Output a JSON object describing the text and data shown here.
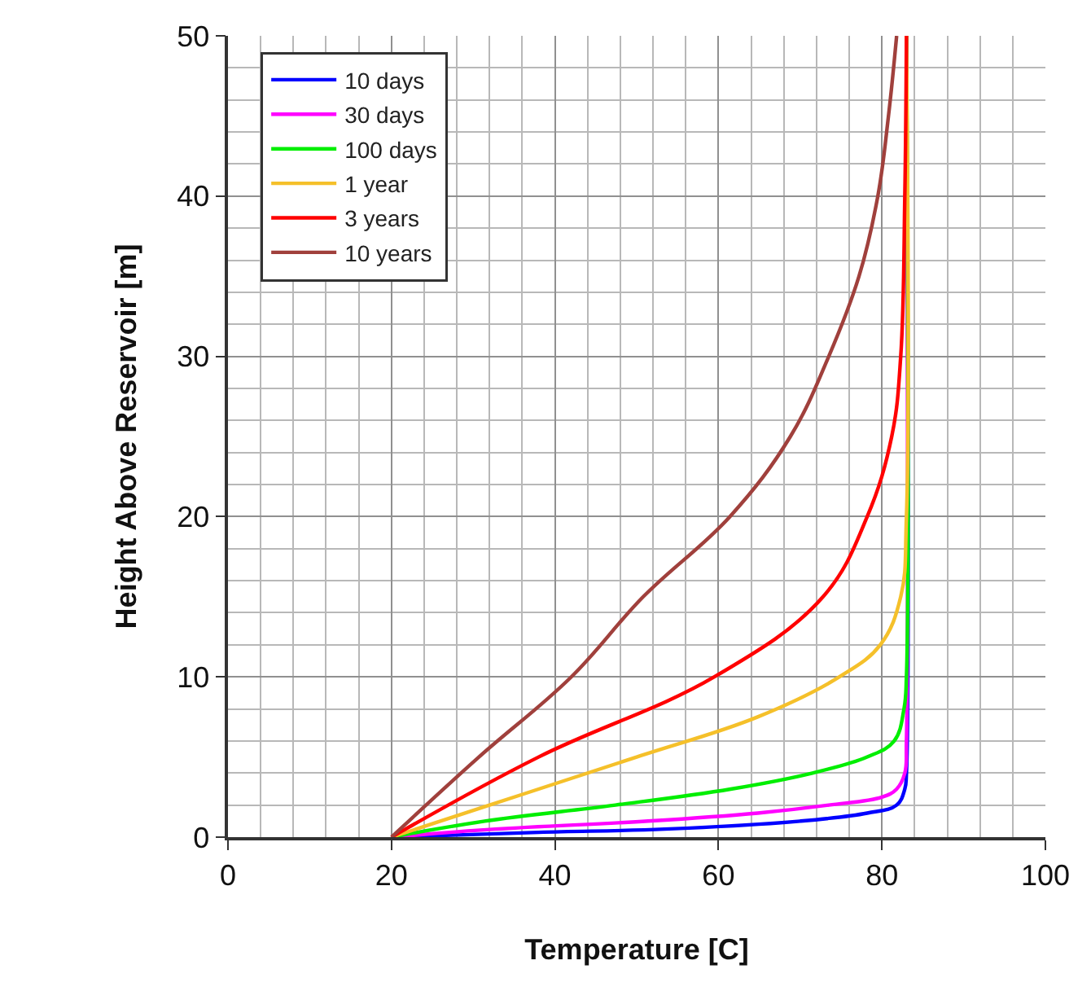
{
  "chart_data": {
    "type": "line",
    "xlabel": "Temperature [C]",
    "ylabel": "Height Above Reservoir [m]",
    "xlim": [
      0,
      100
    ],
    "xticks": [
      0,
      20,
      40,
      60,
      80,
      100
    ],
    "ylim": [
      0,
      50
    ],
    "yticks": [
      0,
      10,
      20,
      30,
      40,
      50
    ],
    "grid": true,
    "legend": "top left",
    "line_style": "solid",
    "marker": "none",
    "series": [
      {
        "name": "10 days",
        "color": "#0000ff",
        "x": [
          20,
          38,
          53.4,
          70,
          78.2,
          81.8,
          82.8,
          83,
          83
        ],
        "values": [
          0,
          0.3,
          0.5,
          1,
          1.5,
          2,
          3,
          4,
          50
        ]
      },
      {
        "name": "30 days",
        "color": "#ff00ff",
        "x": [
          20,
          32.7,
          51.4,
          64.8,
          73.5,
          80,
          81.8,
          82.8,
          83,
          83
        ],
        "values": [
          0,
          0.5,
          1,
          1.5,
          2,
          2.5,
          3,
          4,
          6,
          50
        ]
      },
      {
        "name": "100 days",
        "color": "#00ee00",
        "x": [
          20,
          31.4,
          47.4,
          61.5,
          71.5,
          78.2,
          81.5,
          82.7,
          83,
          83
        ],
        "values": [
          0,
          1,
          2,
          3,
          4,
          5,
          6,
          8,
          10,
          50
        ]
      },
      {
        "name": "1 year",
        "color": "#f5c02a",
        "x": [
          20,
          32,
          50,
          64.8,
          74.8,
          79.8,
          82.3,
          83,
          83
        ],
        "values": [
          0,
          2,
          5,
          7.5,
          10,
          12,
          15,
          20,
          50
        ]
      },
      {
        "name": "3 years",
        "color": "#ff0000",
        "x": [
          20,
          38,
          59.5,
          72.8,
          78.2,
          81.2,
          82.3,
          82.8,
          83
        ],
        "values": [
          0,
          5,
          10,
          15,
          20,
          25,
          30,
          40,
          50
        ]
      },
      {
        "name": "10 years",
        "color": "#a0403c",
        "x": [
          20,
          30.7,
          42,
          50.8,
          61.4,
          68.8,
          73.5,
          77.2,
          79.5,
          80.8,
          81.8
        ],
        "values": [
          0,
          5,
          10,
          15,
          20,
          25,
          30,
          35,
          40,
          45,
          50
        ]
      }
    ]
  }
}
